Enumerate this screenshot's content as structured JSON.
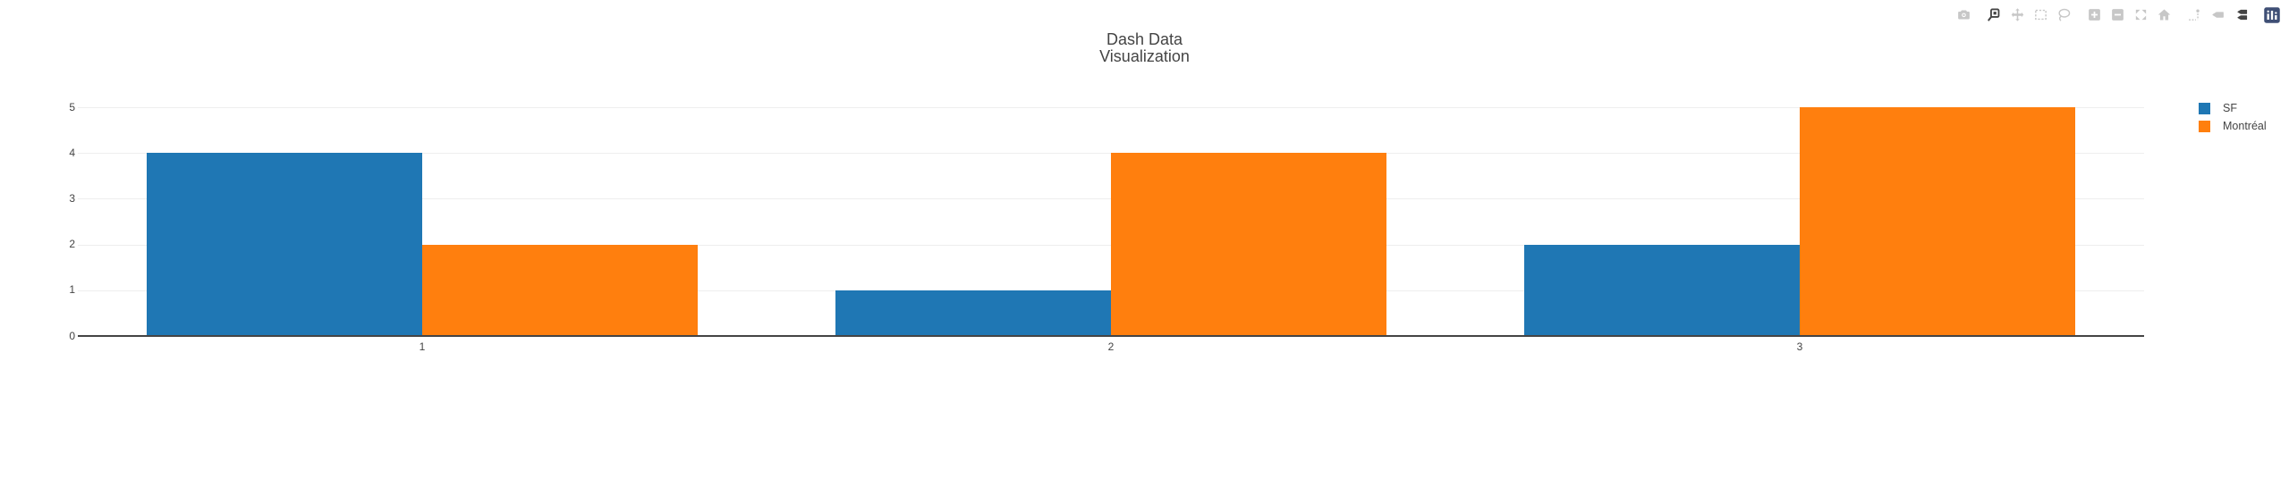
{
  "page": {
    "background": "#ffffff"
  },
  "title": {
    "line1": "Dash Data",
    "line2": "Visualization",
    "full": "Dash Data Visualization"
  },
  "chart_data": {
    "type": "bar",
    "title": "Dash Data Visualization",
    "bar_mode": "group",
    "categories": [
      "1",
      "2",
      "3"
    ],
    "series": [
      {
        "name": "SF",
        "color": "#1f77b4",
        "values": [
          4,
          1,
          2
        ]
      },
      {
        "name": "Montréal",
        "color": "#ff7f0e",
        "values": [
          2,
          4,
          5
        ]
      }
    ],
    "xlabel": "",
    "ylabel": "",
    "ylim": [
      0,
      5
    ],
    "yticks": [
      "0",
      "1",
      "2",
      "3",
      "4",
      "5"
    ],
    "grid": true,
    "legend_position": "right-top",
    "gridline_color": "#eeeeee",
    "zeroline_color": "#444444",
    "text_color": "#444444"
  },
  "modebar": {
    "icon_color": "#c7c7c7",
    "active_color": "#444444",
    "logo_color": "#3f4f75",
    "groups": [
      [
        {
          "icon": "camera-icon",
          "active": false
        }
      ],
      [
        {
          "icon": "zoom-icon",
          "active": true
        },
        {
          "icon": "pan-icon",
          "active": false
        },
        {
          "icon": "box-select-icon",
          "active": false
        },
        {
          "icon": "lasso-select-icon",
          "active": false
        }
      ],
      [
        {
          "icon": "zoom-in-icon",
          "active": false
        },
        {
          "icon": "zoom-out-icon",
          "active": false
        },
        {
          "icon": "autoscale-icon",
          "active": false
        },
        {
          "icon": "reset-axes-home-icon",
          "active": false
        }
      ],
      [
        {
          "icon": "toggle-spikelines-icon",
          "active": false
        },
        {
          "icon": "hover-closest-icon",
          "active": false
        },
        {
          "icon": "hover-compare-icon",
          "active": true
        }
      ],
      [
        {
          "icon": "plotly-logo-icon",
          "active": false
        }
      ]
    ]
  }
}
